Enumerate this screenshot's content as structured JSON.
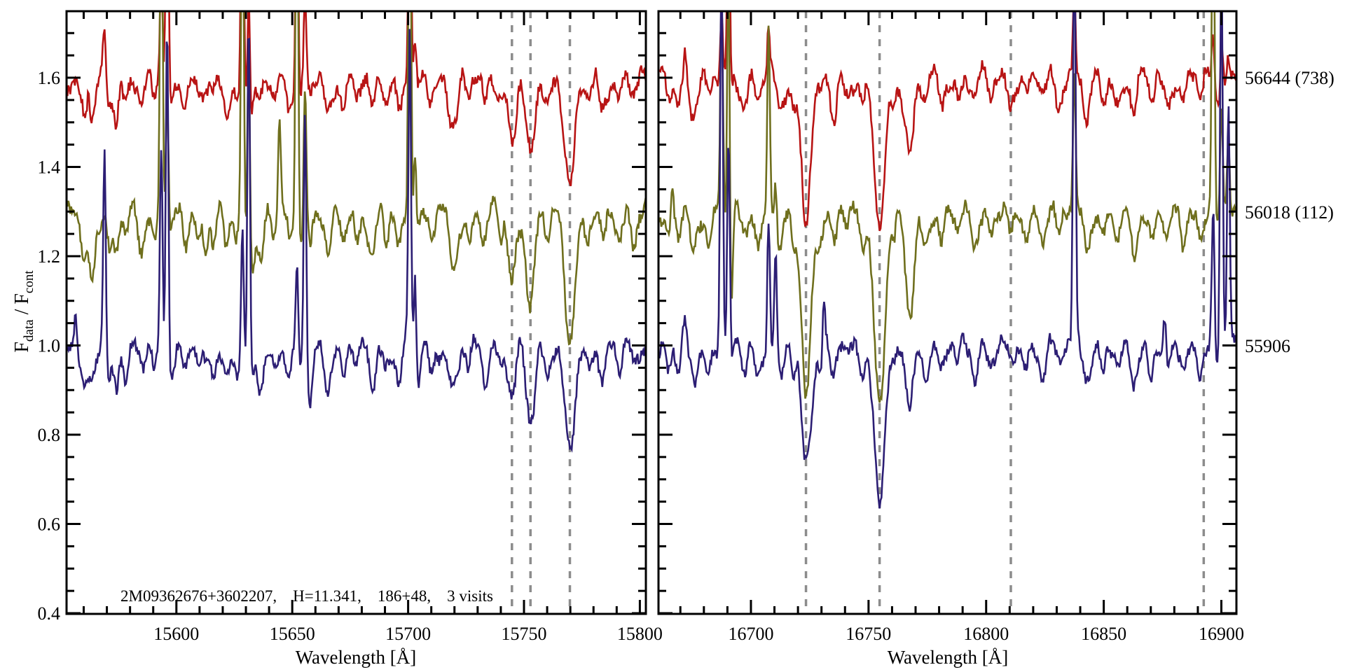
{
  "figure": {
    "background": "#ffffff",
    "annotation": "2M09362676+3602207,    H=11.341,    186+48,    3 visits",
    "xlabel": "Wavelength [Å]",
    "ylabel": {
      "f1": "F",
      "s1": "data",
      "f2": " / F",
      "s2": "cont"
    }
  },
  "colors": {
    "axis": "#000000",
    "dashed_line": "#8c8c8c",
    "background": "#ffffff"
  },
  "chart_data": {
    "type": "line",
    "title": "",
    "xlabel": "Wavelength [Å]",
    "ylabel": "F_data / F_cont",
    "ylim": [
      0.4,
      1.749
    ],
    "yticks": [
      0.4,
      0.6,
      0.8,
      1.0,
      1.2,
      1.4,
      1.6
    ],
    "ytick_labels": [
      "0.4",
      "0.6",
      "0.8",
      "1.0",
      "1.2",
      "1.4",
      "1.6"
    ],
    "y_minor_step": 0.05,
    "legend_position": "right",
    "grid": false,
    "series": [
      {
        "name": "56644 (738)",
        "color": "#b81414",
        "offset": 1.6,
        "depth_scale": 1.0,
        "noise": 0.014
      },
      {
        "name": "56018 (112)",
        "color": "#6f6f1d",
        "offset": 1.3,
        "depth_scale": 1.25,
        "noise": 0.014
      },
      {
        "name": "55906",
        "color": "#2c1e74",
        "offset": 1.0,
        "depth_scale": 1.1,
        "noise": 0.013
      }
    ],
    "panels": [
      {
        "xlim": [
          15552.6,
          15802.6
        ],
        "xticks": [
          15600,
          15650,
          15700,
          15750,
          15800
        ],
        "x_minor_step": 10,
        "dashed_lines": [
          15744.8,
          15752.8,
          15769.8
        ],
        "dips": [
          [
            15560,
            0.08,
            1.2
          ],
          [
            15563.5,
            0.1,
            1.5
          ],
          [
            15571,
            0.07,
            1.2
          ],
          [
            15574,
            0.08,
            1.0
          ],
          [
            15578,
            0.05,
            1.2
          ],
          [
            15585,
            0.06,
            1.2
          ],
          [
            15590.5,
            0.05,
            1.0
          ],
          [
            15597,
            0.06,
            1.5
          ],
          [
            15604,
            0.05,
            1.2
          ],
          [
            15609.5,
            0.05,
            1.0
          ],
          [
            15612.5,
            0.05,
            1.0
          ],
          [
            15616,
            0.05,
            1.2
          ],
          [
            15621.5,
            0.07,
            1.2
          ],
          [
            15626,
            0.05,
            1.0
          ],
          [
            15631.5,
            0.11,
            1.8
          ],
          [
            15636.5,
            [
              0.06,
              0.1,
              0.1
            ],
            1.3
          ],
          [
            15642,
            0.04,
            1.0
          ],
          [
            15649,
            0.06,
            1.3
          ],
          [
            15653.5,
            0.05,
            1.0
          ],
          [
            15657.8,
            [
              0.05,
              0.06,
              0.15
            ],
            1.1
          ],
          [
            15665.5,
            [
              0.08,
              0.1,
              0.08
            ],
            1.5
          ],
          [
            15672,
            0.05,
            1.2
          ],
          [
            15678,
            0.05,
            1.2
          ],
          [
            15684.5,
            0.08,
            1.4
          ],
          [
            15690.5,
            [
              0.05,
              0.08,
              0.05
            ],
            1.1
          ],
          [
            15696,
            [
              0.06,
              0.09,
              0.08
            ],
            1.2
          ],
          [
            15703.5,
            [
              0.05,
              0.05,
              0.12
            ],
            1.2
          ],
          [
            15710,
            0.05,
            1.3
          ],
          [
            15719.5,
            0.1,
            1.8
          ],
          [
            15726,
            0.05,
            1.2
          ],
          [
            15733,
            0.06,
            1.2
          ],
          [
            15740,
            0.04,
            1.0
          ],
          [
            15744.8,
            [
              0.15,
              0.16,
              0.13
            ],
            1.6
          ],
          [
            15752.8,
            [
              0.19,
              0.21,
              0.17
            ],
            1.8
          ],
          [
            15760,
            0.05,
            1.2
          ],
          [
            15769.8,
            [
              0.25,
              0.28,
              0.24
            ],
            2.2
          ],
          [
            15777.5,
            0.05,
            1.3
          ],
          [
            15784,
            0.06,
            1.3
          ],
          [
            15791,
            0.05,
            1.2
          ],
          [
            15797.5,
            0.05,
            1.2
          ]
        ],
        "spikes": [
          [
            15556.5,
            [
              0,
              0,
              0.07
            ]
          ],
          [
            15562,
            [
              0.05,
              0,
              0
            ]
          ],
          [
            15569,
            [
              0.1,
              0,
              0.46
            ]
          ],
          [
            15593.5,
            [
              0.25,
              0.85,
              0.45
            ]
          ],
          [
            15596,
            [
              0.65,
              0.35,
              0.8
            ]
          ],
          [
            15628.5,
            [
              0.7,
              0.9,
              0.3
            ]
          ],
          [
            15631.2,
            [
              0.3,
              0.5,
              0.85
            ]
          ],
          [
            15644.5,
            [
              0,
              0.22,
              0
            ]
          ],
          [
            15652,
            [
              0.55,
              0.95,
              0.2
            ]
          ],
          [
            15655.5,
            [
              0.18,
              0.3,
              0.55
            ]
          ],
          [
            15700.7,
            [
              0.6,
              0.95,
              0.7
            ]
          ],
          [
            15703,
            [
              0.1,
              0.2,
              0.25
            ]
          ]
        ]
      },
      {
        "xlim": [
          16660.7,
          16906.4
        ],
        "xticks": [
          16700,
          16750,
          16800,
          16850,
          16900
        ],
        "x_minor_step": 10,
        "dashed_lines": [
          16723.4,
          16754.7,
          16810.5,
          16892.5
        ],
        "dips": [
          [
            16665,
            0.05,
            1.2
          ],
          [
            16669,
            0.05,
            1.0
          ],
          [
            16675.5,
            0.08,
            1.4
          ],
          [
            16682,
            0.05,
            1.2
          ],
          [
            16691,
            [
              0.06,
              0.42,
              0.1
            ],
            0.9
          ],
          [
            16697,
            0.05,
            1.2
          ],
          [
            16703,
            0.06,
            1.3
          ],
          [
            16712.5,
            0.08,
            1.4
          ],
          [
            16718,
            0.05,
            1.0
          ],
          [
            16723.4,
            [
              0.32,
              0.42,
              0.27
            ],
            2.0
          ],
          [
            16729.5,
            0.05,
            1.0
          ],
          [
            16735,
            [
              0.09,
              0.07,
              0.06
            ],
            1.3
          ],
          [
            16741,
            0.04,
            1.0
          ],
          [
            16747.5,
            0.05,
            1.2
          ],
          [
            16754.7,
            [
              0.34,
              0.43,
              0.33
            ],
            2.3
          ],
          [
            16761,
            0.05,
            1.0
          ],
          [
            16767.5,
            [
              0.17,
              0.23,
              0.13
            ],
            1.8
          ],
          [
            16774,
            0.05,
            1.2
          ],
          [
            16781,
            0.06,
            1.3
          ],
          [
            16788,
            0.04,
            1.2
          ],
          [
            16795,
            0.05,
            1.2
          ],
          [
            16802,
            0.04,
            1.2
          ],
          [
            16810.5,
            0.05,
            1.3
          ],
          [
            16817,
            0.04,
            1.2
          ],
          [
            16824,
            0.05,
            1.2
          ],
          [
            16831,
            0.05,
            1.2
          ],
          [
            16843,
            [
              0.1,
              0.06,
              0.06
            ],
            1.4
          ],
          [
            16849.5,
            0.05,
            1.2
          ],
          [
            16856,
            0.06,
            1.3
          ],
          [
            16863,
            0.07,
            1.4
          ],
          [
            16870,
            0.05,
            1.2
          ],
          [
            16877,
            0.06,
            1.3
          ],
          [
            16884,
            0.05,
            1.2
          ],
          [
            16891,
            0.04,
            1.2
          ],
          [
            16898.5,
            0.05,
            1.2
          ]
        ],
        "spikes": [
          [
            16666.5,
            [
              0,
              0.08,
              0
            ]
          ],
          [
            16672,
            [
              0.06,
              0,
              0.05
            ]
          ],
          [
            16687.5,
            [
              0.15,
              0.5,
              0.9
            ]
          ],
          [
            16690.5,
            [
              0.5,
              0.95,
              0.55
            ]
          ],
          [
            16707.5,
            [
              0.12,
              0.45,
              0.3
            ]
          ],
          [
            16710.5,
            [
              0,
              0.1,
              0.25
            ]
          ],
          [
            16731,
            [
              0,
              0,
              0.12
            ]
          ],
          [
            16837.5,
            [
              0.2,
              0.32,
              0.95
            ]
          ],
          [
            16876,
            [
              0,
              0,
              0.08
            ]
          ],
          [
            16896.5,
            [
              0.1,
              0.85,
              0.3
            ]
          ],
          [
            16900,
            [
              0.12,
              0.25,
              0.9
            ]
          ],
          [
            16903,
            [
              0.06,
              0.15,
              0.55
            ]
          ]
        ]
      }
    ]
  }
}
